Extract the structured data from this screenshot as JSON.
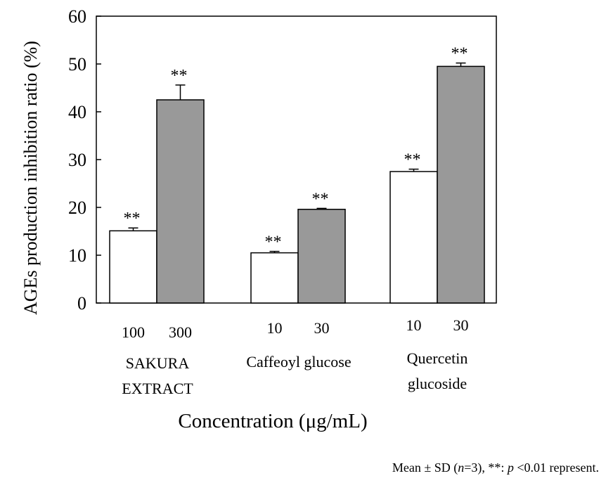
{
  "chart_data": {
    "type": "bar",
    "ylabel": "AGEs production inhibition ratio (%)",
    "xlabel": "Concentration (μg/mL)",
    "ylim": [
      0,
      60
    ],
    "yticks": [
      0,
      10,
      20,
      30,
      40,
      50,
      60
    ],
    "groups": [
      {
        "name_lines": [
          "SAKURA",
          "EXTRACT"
        ],
        "bars": [
          {
            "concentration": "100",
            "value": 15.1,
            "error": 0.6,
            "significance": "**",
            "fill": "#ffffff"
          },
          {
            "concentration": "300",
            "value": 42.5,
            "error": 3.1,
            "significance": "**",
            "fill": "#999999"
          }
        ]
      },
      {
        "name_lines": [
          "Caffeoyl glucose"
        ],
        "bars": [
          {
            "concentration": "10",
            "value": 10.5,
            "error": 0.3,
            "significance": "**",
            "fill": "#ffffff"
          },
          {
            "concentration": "30",
            "value": 19.6,
            "error": 0.2,
            "significance": "**",
            "fill": "#999999"
          }
        ]
      },
      {
        "name_lines": [
          "Quercetin",
          "glucoside"
        ],
        "bars": [
          {
            "concentration": "10",
            "value": 27.5,
            "error": 0.5,
            "significance": "**",
            "fill": "#ffffff"
          },
          {
            "concentration": "30",
            "value": 49.5,
            "error": 0.7,
            "significance": "**",
            "fill": "#999999"
          }
        ]
      }
    ]
  },
  "caption": {
    "prefix": "Mean ± SD (",
    "n_italic": "n",
    "n_rest": "=3), **: ",
    "p_italic": "p",
    "suffix": " <0.01 represent."
  }
}
